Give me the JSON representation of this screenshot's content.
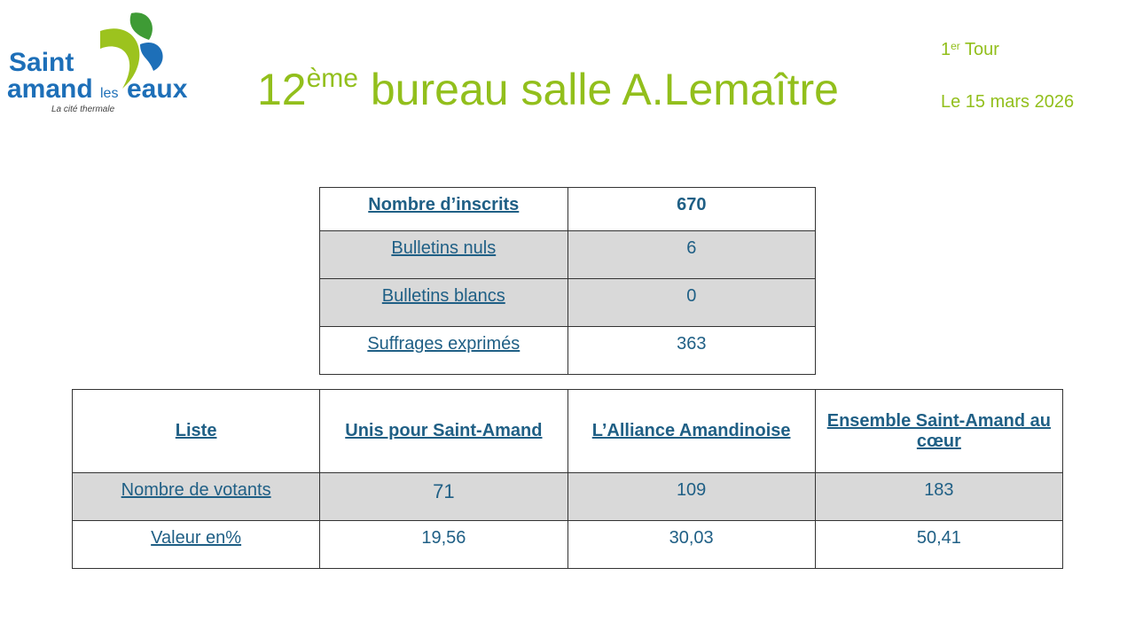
{
  "logo": {
    "line1": "Saint",
    "line2": "Amand",
    "les": "les",
    "eaux": "Eaux",
    "tagline": "La cité thermale"
  },
  "title": {
    "number": "12",
    "sup": "ème",
    "text": " bureau salle A.Lemaître"
  },
  "tour": {
    "number": "1",
    "sup": "er",
    "text": " Tour"
  },
  "date": "Le 15 mars 2026",
  "summary": [
    {
      "label": "Nombre d’inscrits",
      "value": "670"
    },
    {
      "label": "Bulletins nuls",
      "value": "6"
    },
    {
      "label": "Bulletins blancs",
      "value": "0"
    },
    {
      "label": "Suffrages exprimés",
      "value": "363"
    }
  ],
  "results": {
    "header": [
      "Liste",
      "Unis pour Saint-Amand",
      "L’Alliance Amandinoise",
      "Ensemble Saint-Amand au cœur"
    ],
    "rows": [
      {
        "label": "Nombre de votants",
        "values": [
          "71",
          "109",
          "183"
        ]
      },
      {
        "label": "Valeur en%",
        "values": [
          "19,56",
          "30,03",
          "50,41"
        ]
      }
    ]
  },
  "colors": {
    "green": "#92bf1c",
    "text": "#1f5f85",
    "shade": "#d9d9d9"
  }
}
